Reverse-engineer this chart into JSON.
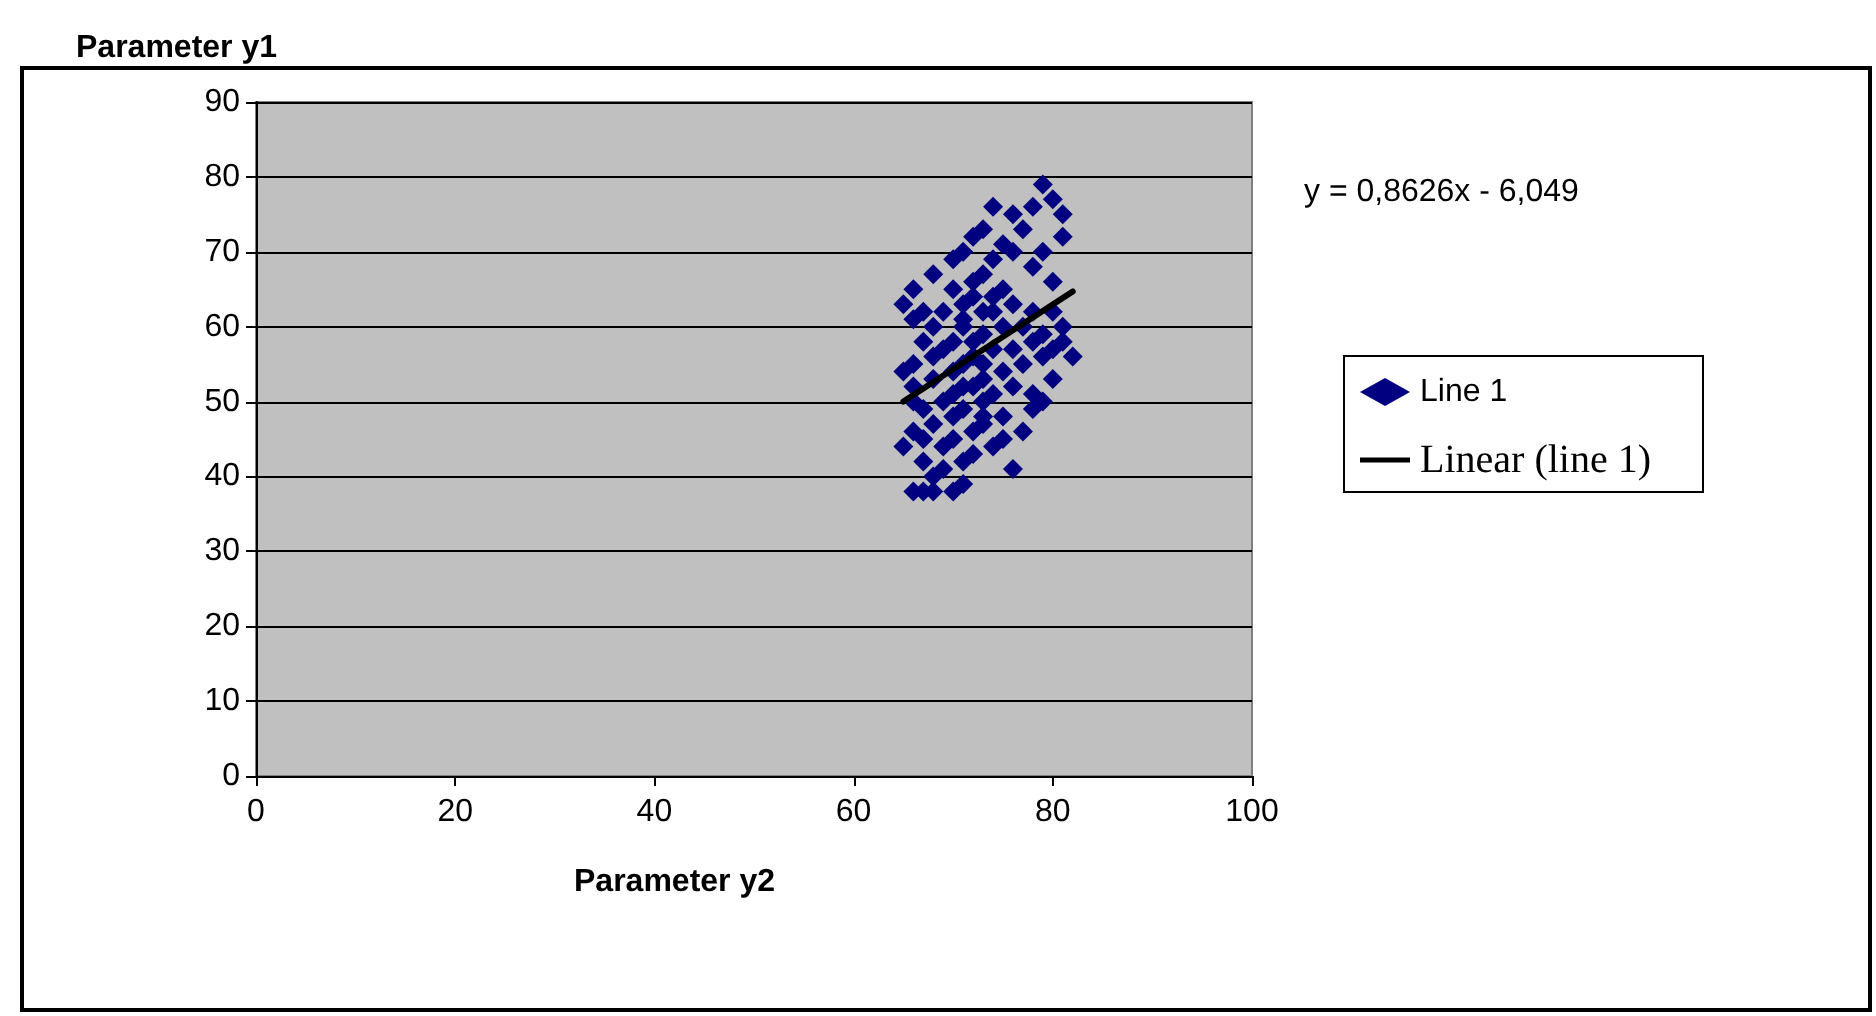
{
  "chart_data": {
    "type": "scatter",
    "xlabel": "Parameter y2",
    "ylabel": "Parameter y1",
    "xlim": [
      0,
      100
    ],
    "xticks": [
      0,
      20,
      40,
      60,
      80,
      100
    ],
    "ylim": [
      0,
      90
    ],
    "yticks": [
      0,
      10,
      20,
      30,
      40,
      50,
      60,
      70,
      80,
      90
    ],
    "grid": "y",
    "legend": "right",
    "marker": "diamond",
    "annotations": [
      "y = 0,8626x - 6,049"
    ],
    "series": [
      {
        "name": "Line 1",
        "color": "#000080",
        "x": [
          79,
          78,
          80,
          81,
          76,
          77,
          74,
          73,
          75,
          72,
          71,
          70,
          79,
          81,
          78,
          80,
          76,
          74,
          73,
          72,
          70,
          68,
          66,
          67,
          65,
          66,
          68,
          69,
          71,
          72,
          73,
          74,
          75,
          76,
          78,
          80,
          81,
          79,
          77,
          75,
          73,
          71,
          70,
          69,
          68,
          67,
          66,
          65,
          66,
          68,
          70,
          71,
          72,
          74,
          76,
          78,
          80,
          82,
          81,
          79,
          77,
          75,
          73,
          72,
          70,
          69,
          67,
          66,
          68,
          70,
          71,
          73,
          74,
          76,
          78,
          79,
          80,
          78,
          75,
          73,
          72,
          70,
          69,
          67,
          66,
          65,
          67,
          68,
          69,
          71,
          72,
          74,
          75,
          77,
          76,
          70,
          71,
          67,
          66,
          68,
          73,
          72,
          71,
          74,
          73,
          71
        ],
        "values": [
          79,
          76,
          77,
          75,
          75,
          73,
          76,
          73,
          71,
          72,
          70,
          69,
          70,
          72,
          68,
          66,
          70,
          69,
          67,
          66,
          65,
          67,
          65,
          62,
          63,
          61,
          60,
          62,
          63,
          64,
          62,
          64,
          65,
          63,
          62,
          62,
          60,
          59,
          60,
          60,
          59,
          60,
          58,
          57,
          56,
          58,
          55,
          54,
          52,
          53,
          54,
          55,
          56,
          57,
          57,
          58,
          57,
          56,
          58,
          56,
          55,
          54,
          53,
          52,
          51,
          50,
          49,
          50,
          47,
          48,
          49,
          50,
          51,
          52,
          51,
          50,
          53,
          49,
          48,
          47,
          46,
          45,
          44,
          45,
          46,
          44,
          42,
          40,
          41,
          42,
          43,
          44,
          45,
          46,
          41,
          38,
          39,
          38,
          38,
          38,
          48,
          58,
          61,
          62,
          55,
          52
        ]
      },
      {
        "name": "Linear (line 1)",
        "color": "#000000",
        "type": "line",
        "marker": "none",
        "line_style": "solid",
        "x": [
          65,
          82
        ],
        "values": [
          50.0,
          64.7
        ]
      }
    ]
  }
}
